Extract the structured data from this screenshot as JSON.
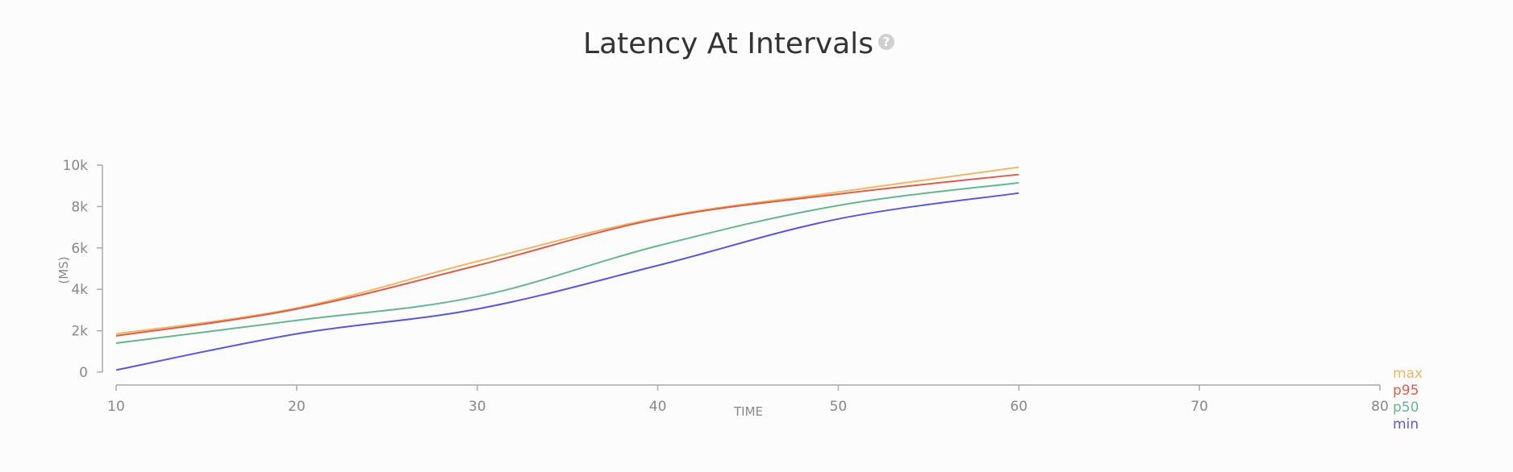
{
  "title": "Latency At Intervals",
  "help_icon": "question-circle-icon",
  "colors": {
    "max": "#f0b66a",
    "p95": "#d95f4c",
    "p50": "#66b68f",
    "min": "#5a58d6",
    "axis": "#aaaaaa",
    "tick_text": "#888888"
  },
  "chart_data": {
    "type": "line",
    "xlabel": "TIME",
    "ylabel": "(MS)",
    "xlim": [
      10,
      80
    ],
    "ylim": [
      0,
      10000
    ],
    "xticks": [
      10,
      20,
      30,
      40,
      50,
      60,
      70,
      80
    ],
    "yticks": [
      0,
      2000,
      4000,
      6000,
      8000,
      10000
    ],
    "ytick_labels": [
      "0",
      "2k",
      "4k",
      "6k",
      "8k",
      "10k"
    ],
    "x": [
      10,
      20,
      30,
      40,
      50,
      60
    ],
    "legend_position": "bottom-right",
    "grid": false,
    "series": [
      {
        "name": "max",
        "values": [
          1850,
          3100,
          5350,
          7450,
          8700,
          9900
        ]
      },
      {
        "name": "p95",
        "values": [
          1750,
          3050,
          5150,
          7400,
          8600,
          9550
        ]
      },
      {
        "name": "p50",
        "values": [
          1400,
          2500,
          3650,
          6100,
          8050,
          9150
        ]
      },
      {
        "name": "min",
        "values": [
          100,
          1850,
          3050,
          5150,
          7400,
          8650
        ]
      }
    ]
  }
}
